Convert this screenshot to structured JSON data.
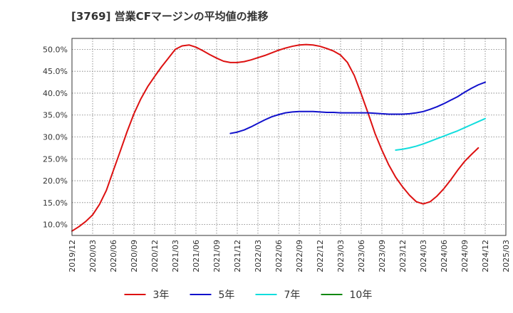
{
  "chart_data": {
    "type": "line",
    "title": "[3769]  営業CFマージンの平均値の推移",
    "xlabel": "",
    "ylabel": "",
    "x_range": [
      "2019-12",
      "2025-03"
    ],
    "ylim": [
      7.5,
      52.5
    ],
    "grid": true,
    "legend_position": "bottom",
    "x_ticks": [
      "2019/12",
      "2020/03",
      "2020/06",
      "2020/09",
      "2020/12",
      "2021/03",
      "2021/06",
      "2021/09",
      "2021/12",
      "2022/03",
      "2022/06",
      "2022/09",
      "2022/12",
      "2023/03",
      "2023/06",
      "2023/09",
      "2023/12",
      "2024/03",
      "2024/06",
      "2024/09",
      "2024/12",
      "2025/03"
    ],
    "y_ticks": [
      {
        "value": 10,
        "label": "10.0%"
      },
      {
        "value": 15,
        "label": "15.0%"
      },
      {
        "value": 20,
        "label": "20.0%"
      },
      {
        "value": 25,
        "label": "25.0%"
      },
      {
        "value": 30,
        "label": "30.0%"
      },
      {
        "value": 35,
        "label": "35.0%"
      },
      {
        "value": 40,
        "label": "40.0%"
      },
      {
        "value": 45,
        "label": "45.0%"
      },
      {
        "value": 50,
        "label": "50.0%"
      }
    ],
    "series": [
      {
        "name": "3年",
        "color": "#dd1111",
        "points": [
          [
            "2019-12",
            8.5
          ],
          [
            "2020-01",
            9.5
          ],
          [
            "2020-02",
            10.7
          ],
          [
            "2020-03",
            12.2
          ],
          [
            "2020-04",
            14.6
          ],
          [
            "2020-05",
            17.8
          ],
          [
            "2020-06",
            22.3
          ],
          [
            "2020-07",
            26.7
          ],
          [
            "2020-08",
            31.2
          ],
          [
            "2020-09",
            35.3
          ],
          [
            "2020-10",
            38.7
          ],
          [
            "2020-11",
            41.5
          ],
          [
            "2020-12",
            43.8
          ],
          [
            "2021-01",
            46.0
          ],
          [
            "2021-02",
            48.0
          ],
          [
            "2021-03",
            50.0
          ],
          [
            "2021-04",
            50.8
          ],
          [
            "2021-05",
            51.0
          ],
          [
            "2021-06",
            50.5
          ],
          [
            "2021-07",
            49.7
          ],
          [
            "2021-08",
            48.8
          ],
          [
            "2021-09",
            48.0
          ],
          [
            "2021-10",
            47.3
          ],
          [
            "2021-11",
            47.0
          ],
          [
            "2021-12",
            47.0
          ],
          [
            "2022-01",
            47.2
          ],
          [
            "2022-02",
            47.6
          ],
          [
            "2022-03",
            48.1
          ],
          [
            "2022-04",
            48.6
          ],
          [
            "2022-05",
            49.2
          ],
          [
            "2022-06",
            49.8
          ],
          [
            "2022-07",
            50.3
          ],
          [
            "2022-08",
            50.7
          ],
          [
            "2022-09",
            51.0
          ],
          [
            "2022-10",
            51.1
          ],
          [
            "2022-11",
            51.0
          ],
          [
            "2022-12",
            50.7
          ],
          [
            "2023-01",
            50.2
          ],
          [
            "2023-02",
            49.6
          ],
          [
            "2023-03",
            48.7
          ],
          [
            "2023-04",
            47.0
          ],
          [
            "2023-05",
            44.0
          ],
          [
            "2023-06",
            39.8
          ],
          [
            "2023-07",
            35.4
          ],
          [
            "2023-08",
            30.8
          ],
          [
            "2023-09",
            27.0
          ],
          [
            "2023-10",
            23.6
          ],
          [
            "2023-11",
            20.8
          ],
          [
            "2023-12",
            18.6
          ],
          [
            "2024-01",
            16.7
          ],
          [
            "2024-02",
            15.2
          ],
          [
            "2024-03",
            14.7
          ],
          [
            "2024-04",
            15.2
          ],
          [
            "2024-05",
            16.5
          ],
          [
            "2024-06",
            18.2
          ],
          [
            "2024-07",
            20.2
          ],
          [
            "2024-08",
            22.4
          ],
          [
            "2024-09",
            24.4
          ],
          [
            "2024-10",
            26.0
          ],
          [
            "2024-11",
            27.5
          ]
        ]
      },
      {
        "name": "5年",
        "color": "#1111cc",
        "points": [
          [
            "2021-11",
            30.8
          ],
          [
            "2021-12",
            31.1
          ],
          [
            "2022-01",
            31.6
          ],
          [
            "2022-02",
            32.3
          ],
          [
            "2022-03",
            33.1
          ],
          [
            "2022-04",
            33.9
          ],
          [
            "2022-05",
            34.6
          ],
          [
            "2022-06",
            35.1
          ],
          [
            "2022-07",
            35.5
          ],
          [
            "2022-08",
            35.7
          ],
          [
            "2022-09",
            35.8
          ],
          [
            "2022-10",
            35.8
          ],
          [
            "2022-11",
            35.8
          ],
          [
            "2022-12",
            35.7
          ],
          [
            "2023-01",
            35.6
          ],
          [
            "2023-02",
            35.6
          ],
          [
            "2023-03",
            35.5
          ],
          [
            "2023-04",
            35.5
          ],
          [
            "2023-05",
            35.5
          ],
          [
            "2023-06",
            35.5
          ],
          [
            "2023-07",
            35.5
          ],
          [
            "2023-08",
            35.4
          ],
          [
            "2023-09",
            35.3
          ],
          [
            "2023-10",
            35.2
          ],
          [
            "2023-11",
            35.2
          ],
          [
            "2023-12",
            35.2
          ],
          [
            "2024-01",
            35.3
          ],
          [
            "2024-02",
            35.5
          ],
          [
            "2024-03",
            35.8
          ],
          [
            "2024-04",
            36.3
          ],
          [
            "2024-05",
            36.9
          ],
          [
            "2024-06",
            37.6
          ],
          [
            "2024-07",
            38.4
          ],
          [
            "2024-08",
            39.2
          ],
          [
            "2024-09",
            40.2
          ],
          [
            "2024-10",
            41.1
          ],
          [
            "2024-11",
            41.9
          ],
          [
            "2024-12",
            42.5
          ]
        ]
      },
      {
        "name": "7年",
        "color": "#11dddd",
        "points": [
          [
            "2023-11",
            27.0
          ],
          [
            "2023-12",
            27.2
          ],
          [
            "2024-01",
            27.5
          ],
          [
            "2024-02",
            27.9
          ],
          [
            "2024-03",
            28.4
          ],
          [
            "2024-04",
            29.0
          ],
          [
            "2024-05",
            29.6
          ],
          [
            "2024-06",
            30.2
          ],
          [
            "2024-07",
            30.8
          ],
          [
            "2024-08",
            31.4
          ],
          [
            "2024-09",
            32.1
          ],
          [
            "2024-10",
            32.8
          ],
          [
            "2024-11",
            33.5
          ],
          [
            "2024-12",
            34.2
          ]
        ]
      },
      {
        "name": "10年",
        "color": "#118811",
        "points": []
      }
    ]
  }
}
